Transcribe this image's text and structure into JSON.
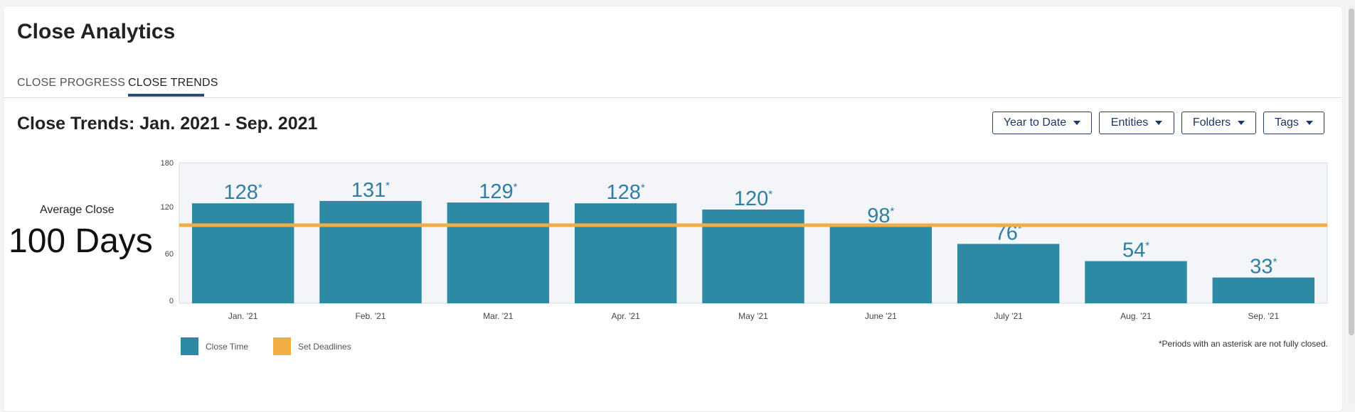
{
  "app": {
    "title": "Close Analytics"
  },
  "tabs": [
    {
      "label": "CLOSE PROGRESS",
      "active": false
    },
    {
      "label": "CLOSE TRENDS",
      "active": true
    }
  ],
  "section": {
    "title": "Close Trends: Jan. 2021 - Sep. 2021"
  },
  "filters": {
    "period": "Year to Date",
    "entities": "Entities",
    "folders": "Folders",
    "tags": "Tags"
  },
  "summary": {
    "label": "Average Close",
    "value": "100 Days"
  },
  "colors": {
    "bar": "#2e89a4",
    "deadline": "#f0ae45",
    "plot_bg": "#f3f5f8",
    "label": "#2e7fa0"
  },
  "legend": {
    "bars": "Close Time",
    "line": "Set Deadlines"
  },
  "footnote": "*Periods with an asterisk are not fully closed.",
  "chart_data": {
    "type": "bar",
    "categories": [
      "Jan. '21",
      "Feb. '21",
      "Mar. '21",
      "Apr. '21",
      "May '21",
      "June '21",
      "July '21",
      "Aug. '21",
      "Sep. '21"
    ],
    "values": [
      128,
      131,
      129,
      128,
      120,
      98,
      76,
      54,
      33
    ],
    "value_suffix": "*",
    "deadline": 100,
    "ylim": [
      0,
      180
    ],
    "yticks": [
      0,
      60,
      120,
      180
    ],
    "title": "",
    "xlabel": "",
    "ylabel": ""
  }
}
